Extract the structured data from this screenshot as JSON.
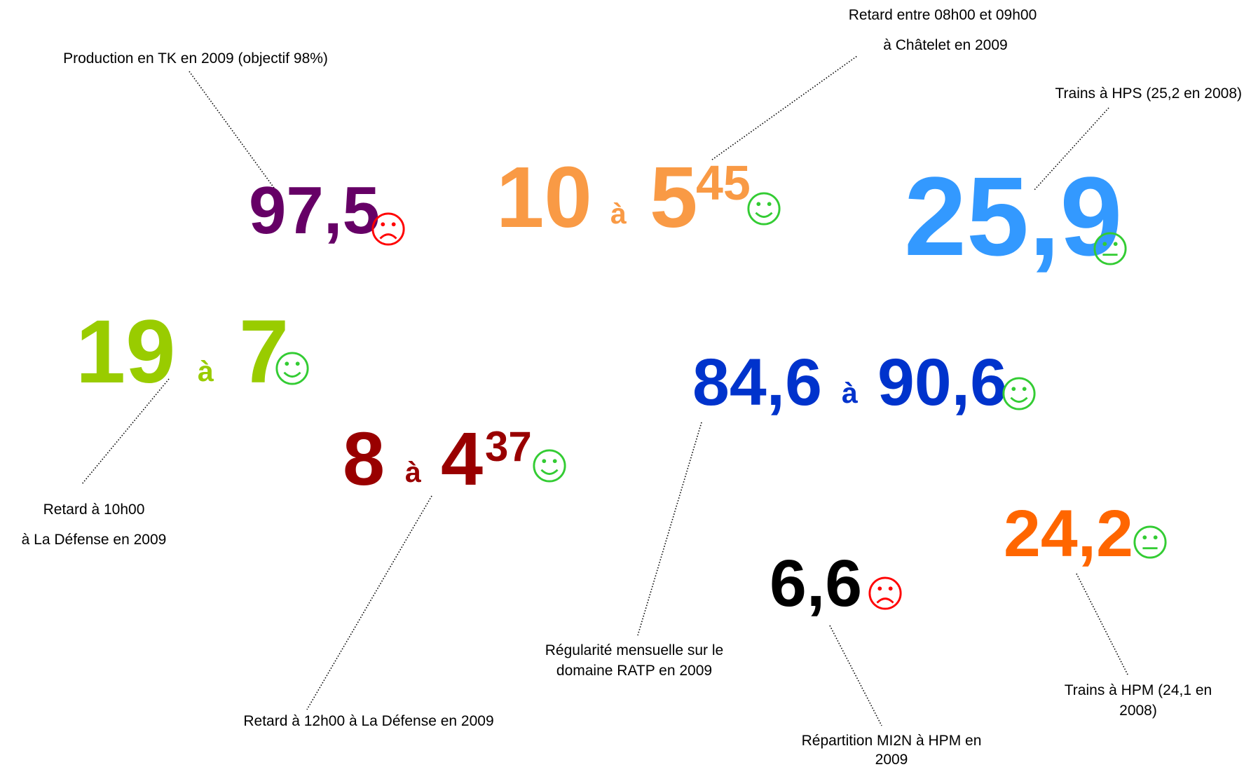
{
  "items": [
    {
      "caption": [
        "Production en TK en 2009 (objectif 98%)"
      ],
      "value": "97,5"
    },
    {
      "caption": [
        "Retard entre 08h00 et 09h00",
        "à Châtelet en 2009"
      ],
      "from": "10",
      "connector": "à",
      "to": "5",
      "exponent": "45"
    },
    {
      "caption": [
        "Trains à HPS (25,2 en 2008)"
      ],
      "value": "25,9"
    },
    {
      "caption": [
        "Retard à 10h00",
        "à La Défense en 2009"
      ],
      "from": "19",
      "connector": "à",
      "to": "7"
    },
    {
      "caption": [
        "Retard à 12h00 à La Défense en 2009"
      ],
      "from": "8",
      "connector": "à",
      "to": "4",
      "exponent": "37"
    },
    {
      "caption": [
        "Régularité mensuelle sur le",
        "domaine RATP en 2009"
      ],
      "from": "84,6",
      "connector": "à",
      "to": "90,6"
    },
    {
      "caption": [
        "Répartition MI2N à HPM en",
        "2009"
      ],
      "value": "6,6"
    },
    {
      "caption": [
        "Trains à HPM (24,1 en",
        "2008)"
      ],
      "value": "24,2"
    }
  ]
}
